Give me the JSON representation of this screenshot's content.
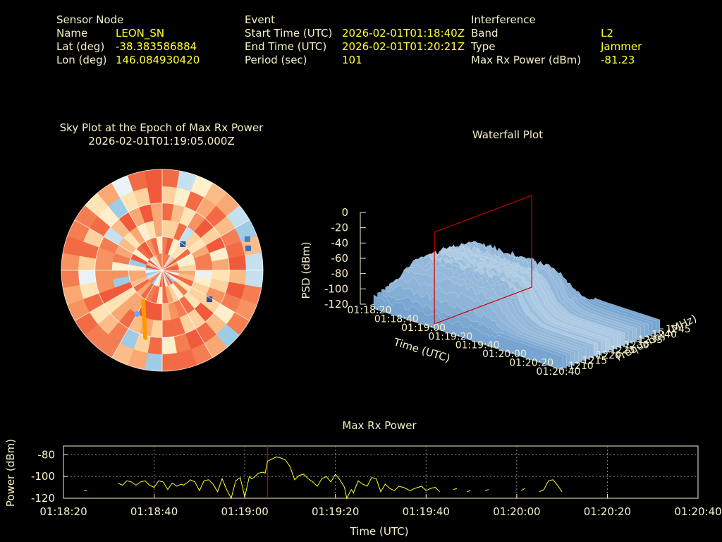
{
  "info": {
    "sensor_header": "Sensor Node",
    "name_label": "Name",
    "name_value": "LEON_SN",
    "lat_label": "Lat (deg)",
    "lat_value": "-38.383586884",
    "lon_label": "Lon (deg)",
    "lon_value": "146.084930420",
    "event_header": "Event",
    "start_label": "Start Time (UTC)",
    "start_value": "2026-02-01T01:18:40Z",
    "end_label": "End Time (UTC)",
    "end_value": "2026-02-01T01:20:21Z",
    "period_label": "Period (sec)",
    "period_value": "101",
    "interf_header": "Interference",
    "band_label": "Band",
    "band_value": "L2",
    "type_label": "Type",
    "type_value": "Jammer",
    "maxrx_label": "Max Rx Power (dBm)",
    "maxrx_value": "-81.23"
  },
  "colors": {
    "label": "#f5f0c8",
    "value": "#ffff33",
    "trace": "#ffff33",
    "marker": "#cc0000",
    "track": "#ff9900",
    "surface_high": "#e8f2f8",
    "surface_low": "#4a86c0"
  },
  "chart_data": [
    {
      "type": "polar-heatmap",
      "title": "Sky Plot at the Epoch of Max Rx Power",
      "subtitle": "2026-02-01T01:19:05.000Z",
      "rings": 6,
      "sectors": 36,
      "track": {
        "start": [
          -148,
          58
        ],
        "end": [
          -166,
          28
        ]
      },
      "track_point": [
        -150,
        45
      ]
    },
    {
      "type": "surface",
      "title": "Waterfall Plot",
      "zlabel": "PSD (dBm)",
      "xlabel": "Time (UTC)",
      "ylabel": "Frequency (MHz)",
      "z_ticks": [
        "0",
        "-20",
        "-40",
        "-60",
        "-80",
        "-100",
        "-120"
      ],
      "zlim": [
        -120,
        0
      ],
      "x_ticks": [
        "01:18:20",
        "01:18:40",
        "01:19:00",
        "01:19:20",
        "01:19:40",
        "01:20:00",
        "01:20:20",
        "01:20:40"
      ],
      "y_ticks": [
        "1210",
        "1215",
        "1220",
        "1225",
        "1230",
        "1235",
        "1240",
        "1245"
      ],
      "ylim": [
        1210,
        1245
      ],
      "marker_time": "01:19:05"
    },
    {
      "type": "line",
      "title": "Max Rx Power",
      "xlabel": "Time (UTC)",
      "ylabel": "Power (dBm)",
      "x_ticks": [
        "01:18:20",
        "01:18:40",
        "01:19:00",
        "01:19:20",
        "01:19:40",
        "01:20:00",
        "01:20:20",
        "01:20:40"
      ],
      "y_ticks": [
        "-80",
        "-100",
        "-120"
      ],
      "xlim_sec": [
        0,
        140
      ],
      "ylim": [
        -120,
        -72
      ],
      "marker_sec": 45,
      "series": [
        {
          "points": [
            [
              4.5,
              -113
            ],
            [
              5.2,
              -113
            ],
            [
              8,
              -112
            ],
            [
              10,
              -109
            ],
            [
              12,
              -106
            ],
            [
              13,
              -108
            ],
            [
              14,
              -104
            ],
            [
              15,
              -105
            ],
            [
              16,
              -108
            ],
            [
              17,
              -105
            ],
            [
              18,
              -104
            ],
            [
              19,
              -108
            ],
            [
              20,
              -110
            ],
            [
              21,
              -104
            ],
            [
              22,
              -105
            ],
            [
              23,
              -112
            ],
            [
              24,
              -106
            ],
            [
              25,
              -109
            ],
            [
              26,
              -107
            ],
            [
              26.5,
              -108
            ],
            [
              27.5,
              -105
            ],
            [
              28,
              -103
            ],
            [
              29,
              -105
            ],
            [
              30,
              -113
            ],
            [
              31,
              -104
            ],
            [
              32,
              -103
            ],
            [
              33,
              -107
            ],
            [
              34,
              -114
            ],
            [
              35,
              -102
            ],
            [
              36,
              -112
            ],
            [
              37,
              -120
            ],
            [
              38,
              -104
            ],
            [
              39,
              -101
            ],
            [
              40,
              -119
            ],
            [
              41,
              -100
            ],
            [
              41.5,
              -102
            ],
            [
              42,
              -101
            ],
            [
              43,
              -97
            ],
            [
              44,
              -96
            ],
            [
              44.5,
              -97
            ],
            [
              45,
              -86
            ],
            [
              46,
              -84
            ],
            [
              47,
              -82
            ],
            [
              48,
              -83
            ],
            [
              49,
              -85
            ],
            [
              50,
              -91
            ],
            [
              51,
              -103
            ],
            [
              52,
              -99
            ],
            [
              53,
              -98
            ],
            [
              54,
              -102
            ],
            [
              55,
              -105
            ],
            [
              56,
              -109
            ],
            [
              57,
              -102
            ],
            [
              58,
              -100
            ],
            [
              59,
              -105
            ],
            [
              60,
              -98
            ],
            [
              61,
              -103
            ],
            [
              62,
              -110
            ],
            [
              62.5,
              -120
            ],
            [
              63.5,
              -112
            ],
            [
              64,
              -115
            ],
            [
              65,
              -104
            ],
            [
              66,
              -107
            ],
            [
              67,
              -109
            ],
            [
              68,
              -101
            ],
            [
              69,
              -102
            ],
            [
              70,
              -114
            ],
            [
              71,
              -107
            ],
            [
              72,
              -111
            ],
            [
              73,
              -113
            ],
            [
              74,
              -109
            ],
            [
              75,
              -110
            ],
            [
              76.5,
              -113
            ],
            [
              77.5,
              -111
            ],
            [
              79,
              -109
            ],
            [
              80,
              -113
            ],
            [
              81,
              -111
            ],
            [
              82,
              -110
            ],
            [
              83,
              -114
            ],
            [
              86,
              -112
            ],
            [
              86.8,
              -111
            ],
            [
              89,
              -114
            ],
            [
              89.8,
              -113
            ],
            [
              93,
              -113
            ],
            [
              93.8,
              -112
            ],
            [
              101,
              -113
            ],
            [
              101.8,
              -111
            ],
            [
              105,
              -114
            ],
            [
              106,
              -112
            ],
            [
              107,
              -104
            ],
            [
              108,
              -103
            ],
            [
              109,
              -108
            ],
            [
              110,
              -114
            ],
            [
              114,
              -109
            ],
            [
              116,
              -109
            ],
            [
              118,
              -110
            ],
            [
              120,
              -111
            ]
          ]
        }
      ]
    }
  ]
}
